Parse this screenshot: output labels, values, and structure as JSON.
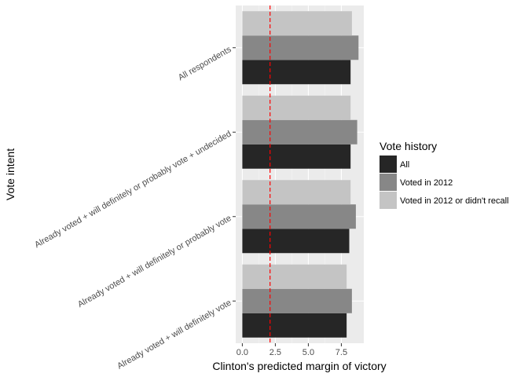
{
  "chart_data": {
    "type": "bar",
    "orientation": "horizontal",
    "xlabel": "Clinton's predicted margin of victory",
    "ylabel": "Vote intent",
    "xlim": [
      -0.5,
      9.2
    ],
    "x_ticks": [
      0,
      2.5,
      5,
      7.5
    ],
    "x_tick_labels": [
      "0.0",
      "2.5",
      "5.0",
      "7.5"
    ],
    "grid": true,
    "reference_line": {
      "value": 2.1,
      "color": "#ff0000",
      "style": "dashed"
    },
    "categories": [
      "All respondents",
      "Already voted + will definitely or probably vote + undecided",
      "Already voted + will definitely or probably vote",
      "Already voted + will definitely vote"
    ],
    "legend": {
      "title": "Vote history",
      "position": "right"
    },
    "series": [
      {
        "name": "All",
        "color": "#262626",
        "values": [
          8.2,
          8.2,
          8.1,
          7.9
        ]
      },
      {
        "name": "Voted in 2012",
        "color": "#878787",
        "values": [
          8.8,
          8.7,
          8.6,
          8.3
        ]
      },
      {
        "name": "Voted in 2012 or didn't recall",
        "color": "#c4c4c4",
        "values": [
          8.3,
          8.2,
          8.2,
          7.9
        ]
      }
    ]
  }
}
